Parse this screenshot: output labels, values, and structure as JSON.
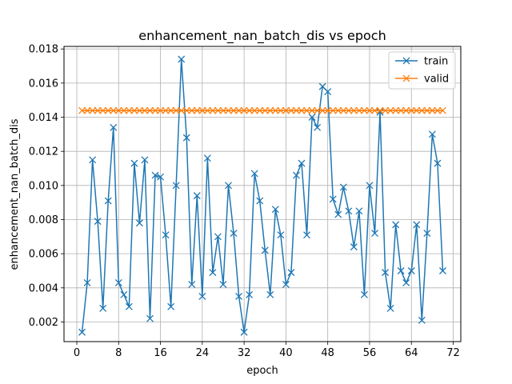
{
  "chart_data": {
    "type": "line",
    "title": "enhancement_nan_batch_dis vs epoch",
    "xlabel": "epoch",
    "ylabel": "enhancement_nan_batch_dis",
    "xlim": [
      -2.45,
      73.45
    ],
    "ylim": [
      0.00085,
      0.01815
    ],
    "xticks": [
      0,
      8,
      16,
      24,
      32,
      40,
      48,
      56,
      64,
      72
    ],
    "yticks": [
      0.002,
      0.004,
      0.006,
      0.008,
      0.01,
      0.012,
      0.014,
      0.016,
      0.018
    ],
    "ytick_labels": [
      "0.002",
      "0.004",
      "0.006",
      "0.008",
      "0.010",
      "0.012",
      "0.014",
      "0.016",
      "0.018"
    ],
    "grid": true,
    "legend_position": "top-right",
    "x": [
      1,
      2,
      3,
      4,
      5,
      6,
      7,
      8,
      9,
      10,
      11,
      12,
      13,
      14,
      15,
      16,
      17,
      18,
      19,
      20,
      21,
      22,
      23,
      24,
      25,
      26,
      27,
      28,
      29,
      30,
      31,
      32,
      33,
      34,
      35,
      36,
      37,
      38,
      39,
      40,
      41,
      42,
      43,
      44,
      45,
      46,
      47,
      48,
      49,
      50,
      51,
      52,
      53,
      54,
      55,
      56,
      57,
      58,
      59,
      60,
      61,
      62,
      63,
      64,
      65,
      66,
      67,
      68,
      69,
      70
    ],
    "series": [
      {
        "name": "train",
        "color": "#1f77b4",
        "marker": "x",
        "values": [
          0.0014,
          0.0043,
          0.0115,
          0.0079,
          0.0028,
          0.0091,
          0.0134,
          0.0043,
          0.0036,
          0.0029,
          0.0113,
          0.0078,
          0.0115,
          0.0022,
          0.0106,
          0.0105,
          0.0071,
          0.0029,
          0.01,
          0.0174,
          0.0128,
          0.0042,
          0.0094,
          0.0035,
          0.0116,
          0.0049,
          0.007,
          0.0042,
          0.01,
          0.0072,
          0.0035,
          0.0014,
          0.0036,
          0.0107,
          0.0091,
          0.0062,
          0.0036,
          0.0086,
          0.0071,
          0.0042,
          0.0049,
          0.0106,
          0.0113,
          0.0071,
          0.014,
          0.0134,
          0.0158,
          0.0155,
          0.0092,
          0.0083,
          0.0099,
          0.0085,
          0.0064,
          0.0085,
          0.0036,
          0.01,
          0.0072,
          0.0143,
          0.0049,
          0.0028,
          0.0077,
          0.005,
          0.0043,
          0.005,
          0.0077,
          0.0021,
          0.0072,
          0.013,
          0.0113,
          0.005
        ]
      },
      {
        "name": "valid",
        "color": "#ff7f0e",
        "marker": "x",
        "values": [
          0.01439,
          0.01439,
          0.01439,
          0.01439,
          0.01439,
          0.01439,
          0.01439,
          0.01439,
          0.01439,
          0.01439,
          0.01439,
          0.01439,
          0.01439,
          0.01439,
          0.01439,
          0.01439,
          0.01439,
          0.01439,
          0.01439,
          0.01439,
          0.01439,
          0.01439,
          0.01439,
          0.01439,
          0.01439,
          0.01439,
          0.01439,
          0.01439,
          0.01439,
          0.01439,
          0.01439,
          0.01439,
          0.01439,
          0.01439,
          0.01439,
          0.01439,
          0.01439,
          0.01439,
          0.01439,
          0.01439,
          0.01439,
          0.01439,
          0.01439,
          0.01439,
          0.01439,
          0.01439,
          0.01439,
          0.01439,
          0.01439,
          0.01439,
          0.01439,
          0.01439,
          0.01439,
          0.01439,
          0.01439,
          0.01439,
          0.01439,
          0.01439,
          0.01439,
          0.01439,
          0.01439,
          0.01439,
          0.01439,
          0.01439,
          0.01439,
          0.01439,
          0.01439,
          0.01439,
          0.01439,
          0.01439
        ]
      }
    ]
  }
}
